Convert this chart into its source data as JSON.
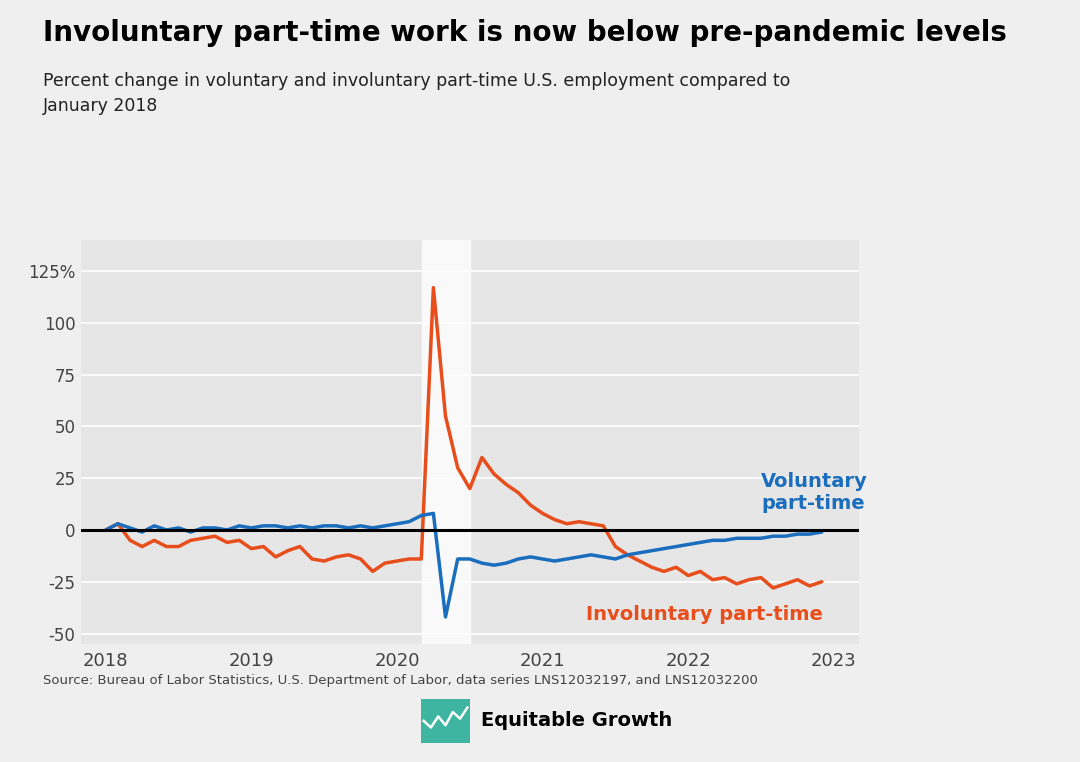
{
  "title": "Involuntary part-time work is now below pre-pandemic levels",
  "subtitle": "Percent change in voluntary and involuntary part-time U.S. employment compared to\nJanuary 2018",
  "source": "Source: Bureau of Labor Statistics, U.S. Department of Labor, data series LNS12032197, and LNS12032200",
  "background_color": "#f0efef",
  "plot_background_color": "#e6e6e6",
  "voluntary_color": "#1a6ebd",
  "involuntary_color": "#e84e1b",
  "voluntary_label": "Voluntary\npart-time",
  "involuntary_label": "Involuntary part-time",
  "shade_start": 2020.17,
  "shade_end": 2020.5,
  "ylim": [
    -55,
    140
  ],
  "yticks": [
    -50,
    -25,
    0,
    25,
    50,
    75,
    100,
    125
  ],
  "xlim": [
    2017.83,
    2023.17
  ],
  "xticks": [
    2018,
    2019,
    2020,
    2021,
    2022,
    2023
  ],
  "dates": [
    2018.0,
    2018.083,
    2018.167,
    2018.25,
    2018.333,
    2018.417,
    2018.5,
    2018.583,
    2018.667,
    2018.75,
    2018.833,
    2018.917,
    2019.0,
    2019.083,
    2019.167,
    2019.25,
    2019.333,
    2019.417,
    2019.5,
    2019.583,
    2019.667,
    2019.75,
    2019.833,
    2019.917,
    2020.0,
    2020.083,
    2020.167,
    2020.25,
    2020.333,
    2020.417,
    2020.5,
    2020.583,
    2020.667,
    2020.75,
    2020.833,
    2020.917,
    2021.0,
    2021.083,
    2021.167,
    2021.25,
    2021.333,
    2021.417,
    2021.5,
    2021.583,
    2021.667,
    2021.75,
    2021.833,
    2021.917,
    2022.0,
    2022.083,
    2022.167,
    2022.25,
    2022.333,
    2022.417,
    2022.5,
    2022.583,
    2022.667,
    2022.75,
    2022.833,
    2022.917
  ],
  "voluntary": [
    0,
    3,
    1,
    -1,
    2,
    0,
    1,
    -1,
    1,
    1,
    0,
    2,
    1,
    2,
    2,
    1,
    2,
    1,
    2,
    2,
    1,
    2,
    1,
    2,
    3,
    4,
    7,
    8,
    -42,
    -14,
    -14,
    -16,
    -17,
    -16,
    -14,
    -13,
    -14,
    -15,
    -14,
    -13,
    -12,
    -13,
    -14,
    -12,
    -11,
    -10,
    -9,
    -8,
    -7,
    -6,
    -5,
    -5,
    -4,
    -4,
    -4,
    -3,
    -3,
    -2,
    -2,
    -1
  ],
  "involuntary": [
    0,
    3,
    -5,
    -8,
    -5,
    -8,
    -8,
    -5,
    -4,
    -3,
    -6,
    -5,
    -9,
    -8,
    -13,
    -10,
    -8,
    -14,
    -15,
    -13,
    -12,
    -14,
    -20,
    -16,
    -15,
    -14,
    -14,
    117,
    55,
    30,
    20,
    35,
    27,
    22,
    18,
    12,
    8,
    5,
    3,
    4,
    3,
    2,
    -8,
    -12,
    -15,
    -18,
    -20,
    -18,
    -22,
    -20,
    -24,
    -23,
    -26,
    -24,
    -23,
    -28,
    -26,
    -24,
    -27,
    -25
  ]
}
